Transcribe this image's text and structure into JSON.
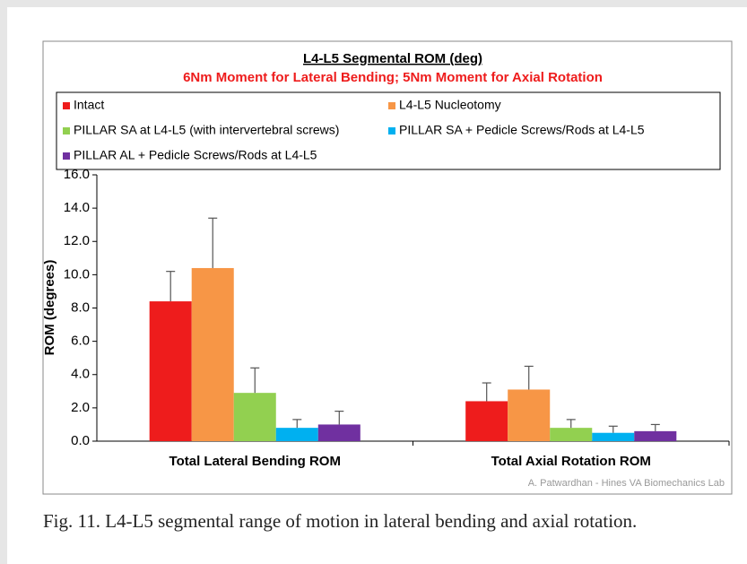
{
  "chart_data": {
    "type": "bar",
    "title": "L4-L5 Segmental ROM (deg)",
    "subtitle": "6Nm Moment for Lateral Bending; 5Nm Moment for Axial Rotation",
    "ylabel": "ROM (degrees)",
    "annotation": "A. Patwardhan - Hines VA Biomechanics Lab",
    "categories": [
      "Total Lateral Bending ROM",
      "Total Axial Rotation ROM"
    ],
    "series": [
      {
        "name": "Intact",
        "color": "#ee1c1c",
        "values": [
          8.4,
          2.4
        ],
        "errors": [
          1.8,
          1.1
        ]
      },
      {
        "name": "L4-L5 Nucleotomy",
        "color": "#f79646",
        "values": [
          10.4,
          3.1
        ],
        "errors": [
          3.0,
          1.4
        ]
      },
      {
        "name": "PILLAR SA at L4-L5 (with intervertebral screws)",
        "color": "#92d050",
        "values": [
          2.9,
          0.8
        ],
        "errors": [
          1.5,
          0.5
        ]
      },
      {
        "name": "PILLAR SA + Pedicle Screws/Rods at L4-L5",
        "color": "#00b0f0",
        "values": [
          0.8,
          0.5
        ],
        "errors": [
          0.5,
          0.4
        ]
      },
      {
        "name": "PILLAR AL + Pedicle Screws/Rods at L4-L5",
        "color": "#7030a0",
        "values": [
          1.0,
          0.6
        ],
        "errors": [
          0.8,
          0.4
        ]
      }
    ],
    "ylim": [
      0,
      16
    ],
    "yticks": [
      {
        "value": 0,
        "label": "0.0"
      },
      {
        "value": 2,
        "label": "2.0"
      },
      {
        "value": 4,
        "label": "4.0"
      },
      {
        "value": 6,
        "label": "6.0"
      },
      {
        "value": 8,
        "label": "8.0"
      },
      {
        "value": 10,
        "label": "10.0"
      },
      {
        "value": 12,
        "label": "12.0"
      },
      {
        "value": 14,
        "label": "14.0"
      },
      {
        "value": 16,
        "label": "16.0"
      }
    ],
    "grid": false
  },
  "caption": "Fig. 11. L4-L5 segmental range of motion in lateral bending and axial rotation."
}
